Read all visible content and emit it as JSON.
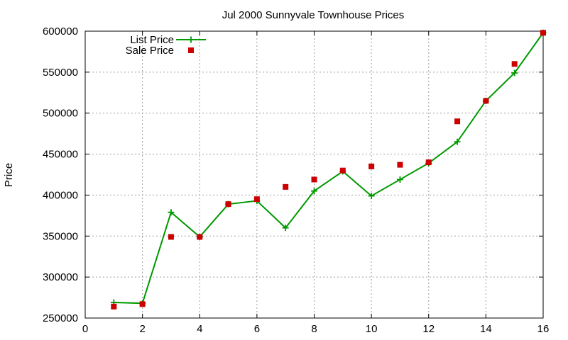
{
  "chart_data": {
    "type": "line",
    "title": "Jul 2000 Sunnyvale Townhouse Prices",
    "xlabel": "",
    "ylabel": "Price",
    "xlim": [
      0,
      16
    ],
    "ylim": [
      250000,
      600000
    ],
    "x_ticks": [
      0,
      2,
      4,
      6,
      8,
      10,
      12,
      14,
      16
    ],
    "y_ticks": [
      250000,
      300000,
      350000,
      400000,
      450000,
      500000,
      550000,
      600000
    ],
    "grid": true,
    "legend_position": "top-left",
    "series": [
      {
        "name": "List Price",
        "style": "line-with-plus-markers",
        "color": "#009900",
        "x": [
          1,
          2,
          3,
          4,
          5,
          6,
          7,
          8,
          9,
          10,
          11,
          12,
          13,
          14,
          15,
          16
        ],
        "values": [
          269000,
          268000,
          379000,
          349000,
          389000,
          393000,
          360000,
          405000,
          429000,
          399000,
          419000,
          439000,
          465000,
          515000,
          549000,
          598000
        ]
      },
      {
        "name": "Sale Price",
        "style": "square-markers",
        "color": "#cc0000",
        "x": [
          1,
          2,
          3,
          4,
          5,
          6,
          7,
          8,
          9,
          10,
          11,
          12,
          13,
          14,
          15,
          16
        ],
        "values": [
          264000,
          267000,
          349000,
          349000,
          389000,
          395000,
          410000,
          419000,
          430000,
          435000,
          437000,
          440000,
          490000,
          515000,
          560000,
          598000
        ]
      }
    ]
  }
}
